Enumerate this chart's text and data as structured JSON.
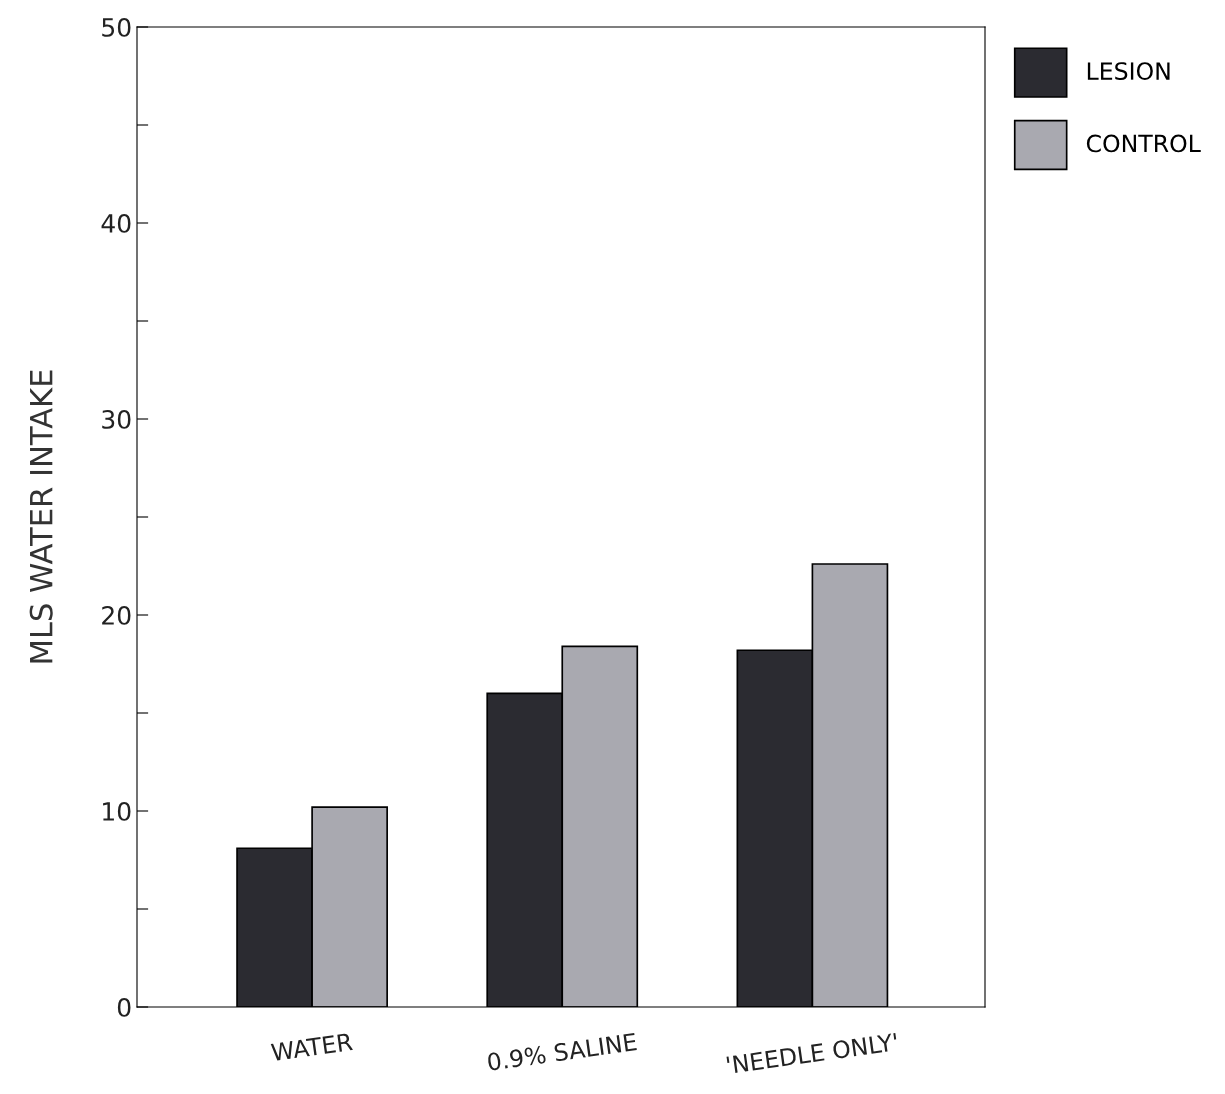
{
  "chart_data": {
    "type": "bar",
    "ylabel": "MLS WATER INTAKE",
    "categories": [
      "WATER",
      "0.9% SALINE",
      "'NEEDLE ONLY'"
    ],
    "series": [
      {
        "name": "LESION",
        "color": "#2b2b31",
        "values": [
          8.1,
          16.0,
          18.2
        ]
      },
      {
        "name": "CONTROL",
        "color": "#a9a9b0",
        "values": [
          10.2,
          18.4,
          22.6
        ]
      }
    ],
    "ylim": [
      0,
      50
    ],
    "yticks": [
      0,
      {
        "value": 5,
        "label": null
      },
      10,
      {
        "value": 15,
        "label": null
      },
      20,
      {
        "value": 25,
        "label": null
      },
      30,
      {
        "value": 35,
        "label": null
      },
      40,
      {
        "value": 45,
        "label": null
      },
      50
    ],
    "grid": false,
    "legend": "top right"
  }
}
